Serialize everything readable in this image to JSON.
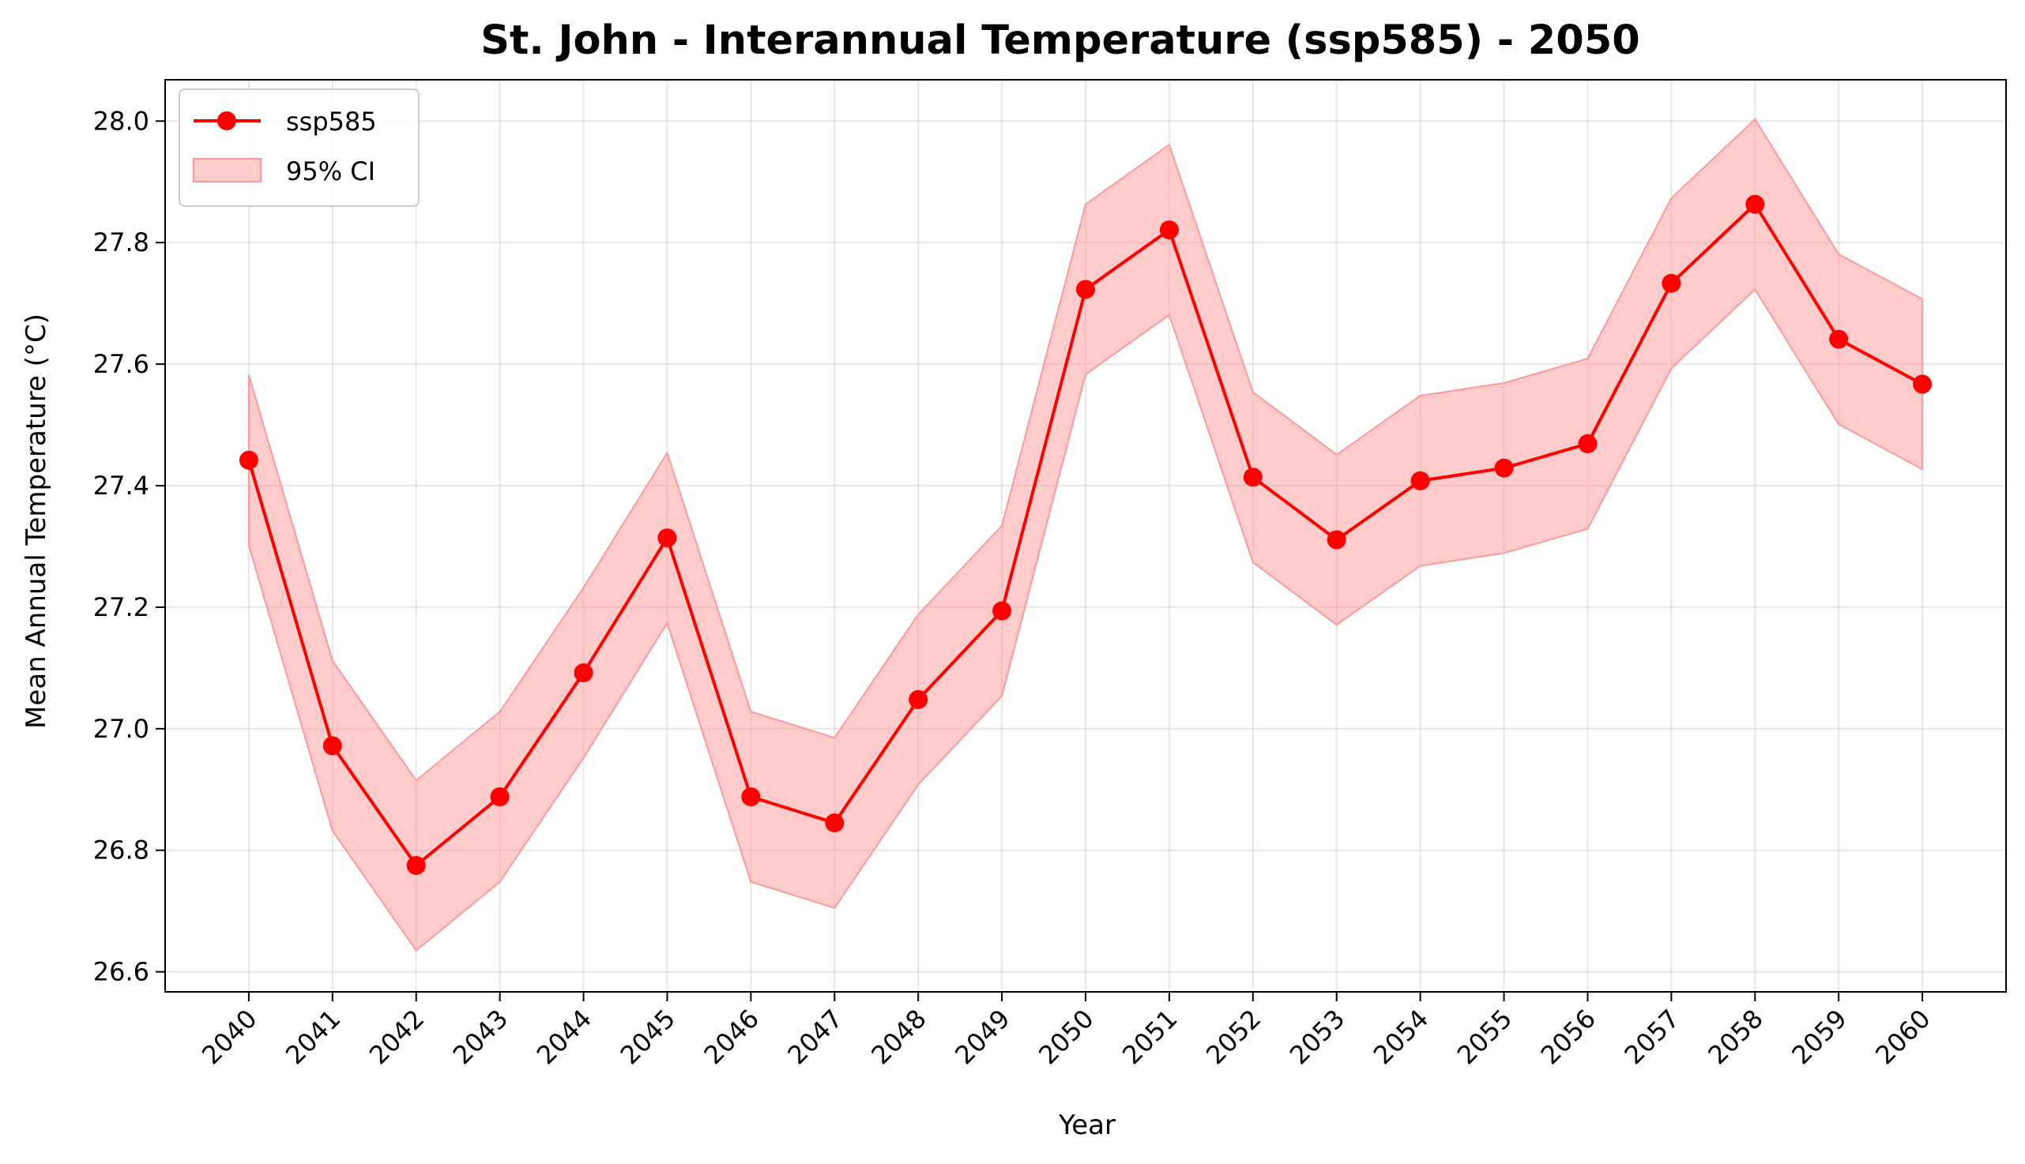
{
  "chart_data": {
    "type": "line",
    "title": "St. John - Interannual Temperature (ssp585) - 2050",
    "xlabel": "Year",
    "ylabel": "Mean Annual Temperature (°C)",
    "x": [
      2040,
      2041,
      2042,
      2043,
      2044,
      2045,
      2046,
      2047,
      2048,
      2049,
      2050,
      2051,
      2052,
      2053,
      2054,
      2055,
      2056,
      2057,
      2058,
      2059,
      2060
    ],
    "xticks": [
      "2040",
      "2041",
      "2042",
      "2043",
      "2044",
      "2045",
      "2046",
      "2047",
      "2048",
      "2049",
      "2050",
      "2051",
      "2052",
      "2053",
      "2054",
      "2055",
      "2056",
      "2057",
      "2058",
      "2059",
      "2060"
    ],
    "yticks": [
      "26.6",
      "26.8",
      "27.0",
      "27.2",
      "27.4",
      "27.6",
      "27.8",
      "28.0"
    ],
    "ytick_values": [
      26.6,
      26.8,
      27.0,
      27.2,
      27.4,
      27.6,
      27.8,
      28.0
    ],
    "ylim": [
      26.567,
      28.068
    ],
    "xlim": [
      2039.0,
      2061.0
    ],
    "grid": true,
    "legend_position": "top-left",
    "series": [
      {
        "name": "ssp585",
        "color": "#ff0000",
        "values": [
          27.442,
          26.972,
          26.775,
          26.888,
          27.092,
          27.314,
          26.888,
          26.845,
          27.048,
          27.194,
          27.723,
          27.821,
          27.414,
          27.311,
          27.408,
          27.429,
          27.469,
          27.733,
          27.863,
          27.641,
          27.567
        ],
        "ci_lower": [
          27.302,
          26.832,
          26.635,
          26.748,
          26.952,
          27.174,
          26.748,
          26.705,
          26.908,
          27.054,
          27.583,
          27.681,
          27.274,
          27.171,
          27.268,
          27.289,
          27.329,
          27.593,
          27.723,
          27.501,
          27.427
        ],
        "ci_upper": [
          27.582,
          27.112,
          26.915,
          27.028,
          27.232,
          27.454,
          27.028,
          26.985,
          27.188,
          27.334,
          27.863,
          27.961,
          27.554,
          27.451,
          27.548,
          27.569,
          27.609,
          27.873,
          28.003,
          27.781,
          27.707
        ]
      }
    ],
    "legend": {
      "entries": [
        "ssp585",
        "95% CI"
      ]
    },
    "colors": {
      "line": "#ff0000",
      "ci_fill": "#ff9999"
    }
  }
}
